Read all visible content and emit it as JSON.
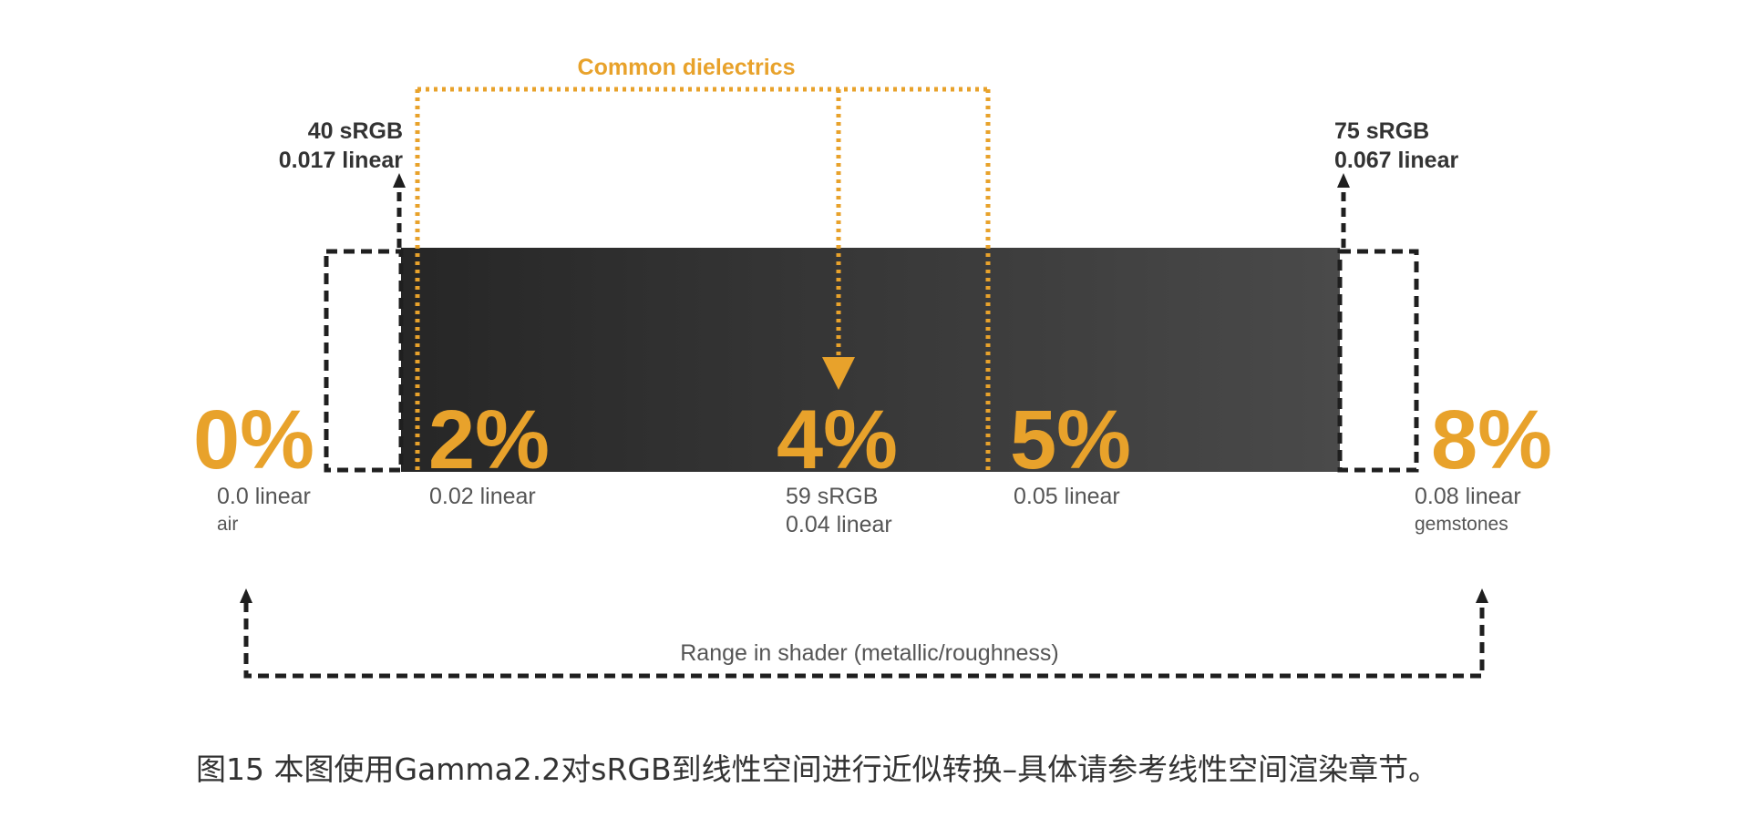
{
  "colors": {
    "accent": "#E8A22B",
    "dark": "#2a2a2a",
    "label": "#555555",
    "dash": "#1f1f1f"
  },
  "header": {
    "group_label": "Common dielectrics"
  },
  "callouts": {
    "left_line1": "40 sRGB",
    "left_line2": "0.017 linear",
    "right_line1": "75 sRGB",
    "right_line2": "0.067 linear"
  },
  "markers": [
    {
      "id": "m0",
      "percent": "0%",
      "line1": "0.0 linear",
      "line2": "air"
    },
    {
      "id": "m2",
      "percent": "2%",
      "line1": "0.02 linear",
      "line2": ""
    },
    {
      "id": "m4",
      "percent": "4%",
      "line1": "59 sRGB",
      "line2": "0.04 linear"
    },
    {
      "id": "m5",
      "percent": "5%",
      "line1": "0.05 linear",
      "line2": ""
    },
    {
      "id": "m8",
      "percent": "8%",
      "line1": "0.08 linear",
      "line2": "gemstones"
    }
  ],
  "range": {
    "label": "Range in shader (metallic/roughness)"
  },
  "caption": "图15   本图使用Gamma2.2对sRGB到线性空间进行近似转换–具体请参考线性空间渲染章节。"
}
